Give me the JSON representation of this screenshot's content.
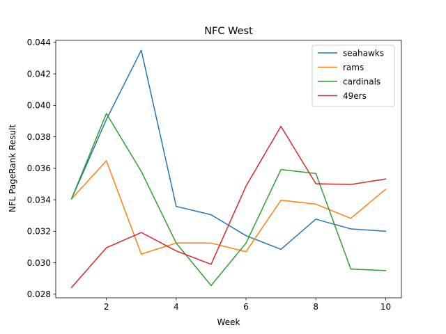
{
  "chart_data": {
    "type": "line",
    "title": "NFC West",
    "xlabel": "Week",
    "ylabel": "NFL PageRank Result",
    "x": [
      1,
      2,
      3,
      4,
      5,
      6,
      7,
      8,
      9,
      10
    ],
    "xlim": [
      0.55,
      10.45
    ],
    "ylim": [
      0.02777,
      0.04413
    ],
    "xticks": [
      2,
      4,
      6,
      8,
      10
    ],
    "yticks": [
      0.028,
      0.03,
      0.032,
      0.034,
      0.036,
      0.038,
      0.04,
      0.042,
      0.044
    ],
    "ytick_labels": [
      "0.028",
      "0.030",
      "0.032",
      "0.034",
      "0.036",
      "0.038",
      "0.040",
      "0.042",
      "0.044"
    ],
    "grid": false,
    "legend_position": "top-right",
    "series": [
      {
        "name": "seahawks",
        "color": "#1f77b4",
        "values": [
          0.03405,
          0.0391,
          0.0435,
          0.03358,
          0.03305,
          0.03172,
          0.03085,
          0.03277,
          0.03215,
          0.032
        ]
      },
      {
        "name": "rams",
        "color": "#ff7f0e",
        "values": [
          0.03405,
          0.03648,
          0.03055,
          0.03125,
          0.03125,
          0.0307,
          0.03397,
          0.03372,
          0.03282,
          0.03467
        ]
      },
      {
        "name": "cardinals",
        "color": "#2ca02c",
        "values": [
          0.03405,
          0.03948,
          0.0358,
          0.03125,
          0.02855,
          0.03125,
          0.03592,
          0.03567,
          0.0296,
          0.0295
        ]
      },
      {
        "name": "49ers",
        "color": "#d62728",
        "values": [
          0.02842,
          0.03095,
          0.03192,
          0.03075,
          0.0299,
          0.03487,
          0.03867,
          0.03502,
          0.03497,
          0.03532
        ]
      }
    ]
  }
}
